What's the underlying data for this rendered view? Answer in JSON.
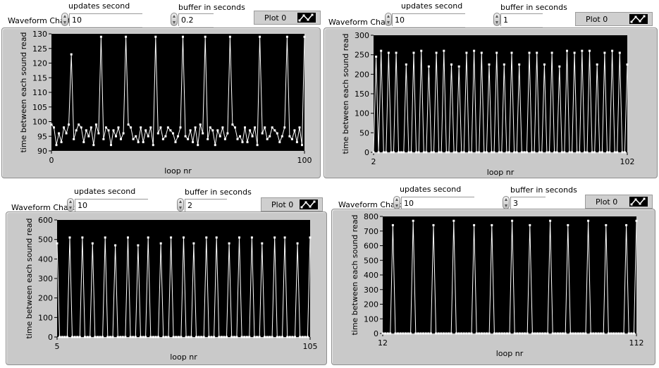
{
  "charts": [
    {
      "type": "line",
      "chart_label": "Waveform Chart",
      "controls": {
        "updates_label": "updates second",
        "updates_value": "10",
        "buffer_label": "buffer in seconds",
        "buffer_value": "0.2",
        "plot_legend": "Plot 0"
      },
      "title": "",
      "xlabel": "loop nr",
      "ylabel": "time between each sound read",
      "xlim": [
        0,
        100
      ],
      "ylim": [
        90,
        130
      ],
      "xticks": [
        0,
        100
      ],
      "yticks": [
        90,
        95,
        100,
        105,
        110,
        115,
        120,
        125,
        130
      ],
      "series": [
        {
          "values": [
            99,
            98,
            92,
            96,
            93,
            98,
            96,
            99,
            123,
            94,
            97,
            99,
            98,
            93,
            97,
            95,
            98,
            92,
            99,
            96,
            129,
            94,
            98,
            97,
            92,
            97,
            95,
            98,
            94,
            96,
            129,
            99,
            98,
            94,
            95,
            93,
            98,
            93,
            97,
            95,
            98,
            92,
            129,
            96,
            98,
            94,
            95,
            98,
            97,
            96,
            93,
            95,
            98,
            129,
            95,
            94,
            97,
            93,
            98,
            92,
            99,
            96,
            129,
            94,
            98,
            97,
            92,
            97,
            95,
            98,
            94,
            96,
            129,
            99,
            98,
            94,
            95,
            93,
            98,
            93,
            97,
            95,
            98,
            92,
            129,
            96,
            98,
            94,
            95,
            98,
            97,
            96,
            93,
            95,
            98,
            129,
            95,
            94,
            97,
            93,
            98,
            92,
            129
          ]
        }
      ],
      "colors": {
        "background": "#000000",
        "trace": "#ffffff"
      }
    },
    {
      "type": "line",
      "chart_label": "Waveform Chart",
      "controls": {
        "updates_label": "updates second",
        "updates_value": "10",
        "buffer_label": "buffer in seconds",
        "buffer_value": "1",
        "plot_legend": "Plot 0"
      },
      "title": "",
      "xlabel": "loop nr",
      "ylabel": "time between each sound read",
      "xlim": [
        2,
        102
      ],
      "ylim": [
        0,
        300
      ],
      "xticks": [
        2,
        102
      ],
      "yticks": [
        0,
        50,
        100,
        150,
        200,
        250,
        300
      ],
      "series": [
        {
          "values": [
            0,
            245,
            0,
            260,
            0,
            0,
            255,
            0,
            0,
            255,
            0,
            0,
            0,
            225,
            0,
            0,
            255,
            0,
            0,
            260,
            0,
            0,
            220,
            0,
            0,
            255,
            0,
            0,
            260,
            0,
            0,
            225,
            0,
            0,
            220,
            0,
            0,
            255,
            0,
            0,
            260,
            0,
            0,
            255,
            0,
            0,
            225,
            0,
            0,
            255,
            0,
            0,
            225,
            0,
            0,
            255,
            0,
            0,
            225,
            0,
            0,
            0,
            255,
            0,
            0,
            255,
            0,
            0,
            225,
            0,
            0,
            255,
            0,
            0,
            220,
            0,
            0,
            260,
            0,
            0,
            255,
            0,
            0,
            260,
            0,
            0,
            260,
            0,
            0,
            225,
            0,
            0,
            255,
            0,
            0,
            260,
            0,
            0,
            255,
            0,
            0,
            225
          ]
        }
      ],
      "colors": {
        "background": "#000000",
        "trace": "#ffffff"
      }
    },
    {
      "type": "line",
      "chart_label": "Waveform Chart",
      "controls": {
        "updates_label": "updates second",
        "updates_value": "10",
        "buffer_label": "buffer in seconds",
        "buffer_value": "2",
        "plot_legend": "Plot 0"
      },
      "title": "",
      "xlabel": "loop nr",
      "ylabel": "time between each sound read",
      "xlim": [
        5,
        105
      ],
      "ylim": [
        0,
        600
      ],
      "xticks": [
        5,
        105
      ],
      "yticks": [
        0,
        100,
        200,
        300,
        400,
        500,
        600
      ],
      "series": [
        {
          "values": [
            480,
            0,
            0,
            0,
            0,
            510,
            0,
            0,
            0,
            0,
            510,
            0,
            0,
            0,
            480,
            0,
            0,
            0,
            0,
            510,
            0,
            0,
            0,
            470,
            0,
            0,
            0,
            0,
            510,
            0,
            0,
            0,
            470,
            0,
            0,
            0,
            510,
            0,
            0,
            0,
            0,
            480,
            0,
            0,
            0,
            510,
            0,
            0,
            0,
            0,
            510,
            0,
            0,
            0,
            480,
            0,
            0,
            0,
            0,
            510,
            0,
            0,
            0,
            510,
            0,
            0,
            0,
            0,
            480,
            0,
            0,
            0,
            510,
            0,
            0,
            0,
            0,
            510,
            0,
            0,
            0,
            480,
            0,
            0,
            0,
            0,
            510,
            0,
            0,
            0,
            510,
            0,
            0,
            0,
            0,
            480,
            0,
            0,
            0,
            0,
            510
          ]
        }
      ],
      "colors": {
        "background": "#000000",
        "trace": "#ffffff"
      }
    },
    {
      "type": "line",
      "chart_label": "Waveform Chart",
      "controls": {
        "updates_label": "updates second",
        "updates_value": "10",
        "buffer_label": "buffer in seconds",
        "buffer_value": "3",
        "plot_legend": "Plot 0"
      },
      "title": "",
      "xlabel": "loop nr",
      "ylabel": "time between each sound read",
      "xlim": [
        12,
        112
      ],
      "ylim": [
        0,
        800
      ],
      "xticks": [
        12,
        112
      ],
      "yticks": [
        0,
        100,
        200,
        300,
        400,
        500,
        600,
        700,
        800
      ],
      "series": [
        {
          "values": [
            0,
            0,
            0,
            0,
            740,
            0,
            0,
            0,
            0,
            0,
            0,
            0,
            770,
            0,
            0,
            0,
            0,
            0,
            0,
            0,
            740,
            0,
            0,
            0,
            0,
            0,
            0,
            0,
            770,
            0,
            0,
            0,
            0,
            0,
            0,
            0,
            740,
            0,
            0,
            0,
            0,
            0,
            0,
            740,
            0,
            0,
            0,
            0,
            0,
            0,
            0,
            770,
            0,
            0,
            0,
            0,
            0,
            0,
            740,
            0,
            0,
            0,
            0,
            0,
            0,
            0,
            770,
            0,
            0,
            0,
            0,
            0,
            0,
            740,
            0,
            0,
            0,
            0,
            0,
            0,
            0,
            770,
            0,
            0,
            0,
            0,
            0,
            0,
            740,
            0,
            0,
            0,
            0,
            0,
            0,
            0,
            740,
            0,
            0,
            0,
            770
          ]
        }
      ],
      "colors": {
        "background": "#000000",
        "trace": "#ffffff"
      }
    }
  ]
}
